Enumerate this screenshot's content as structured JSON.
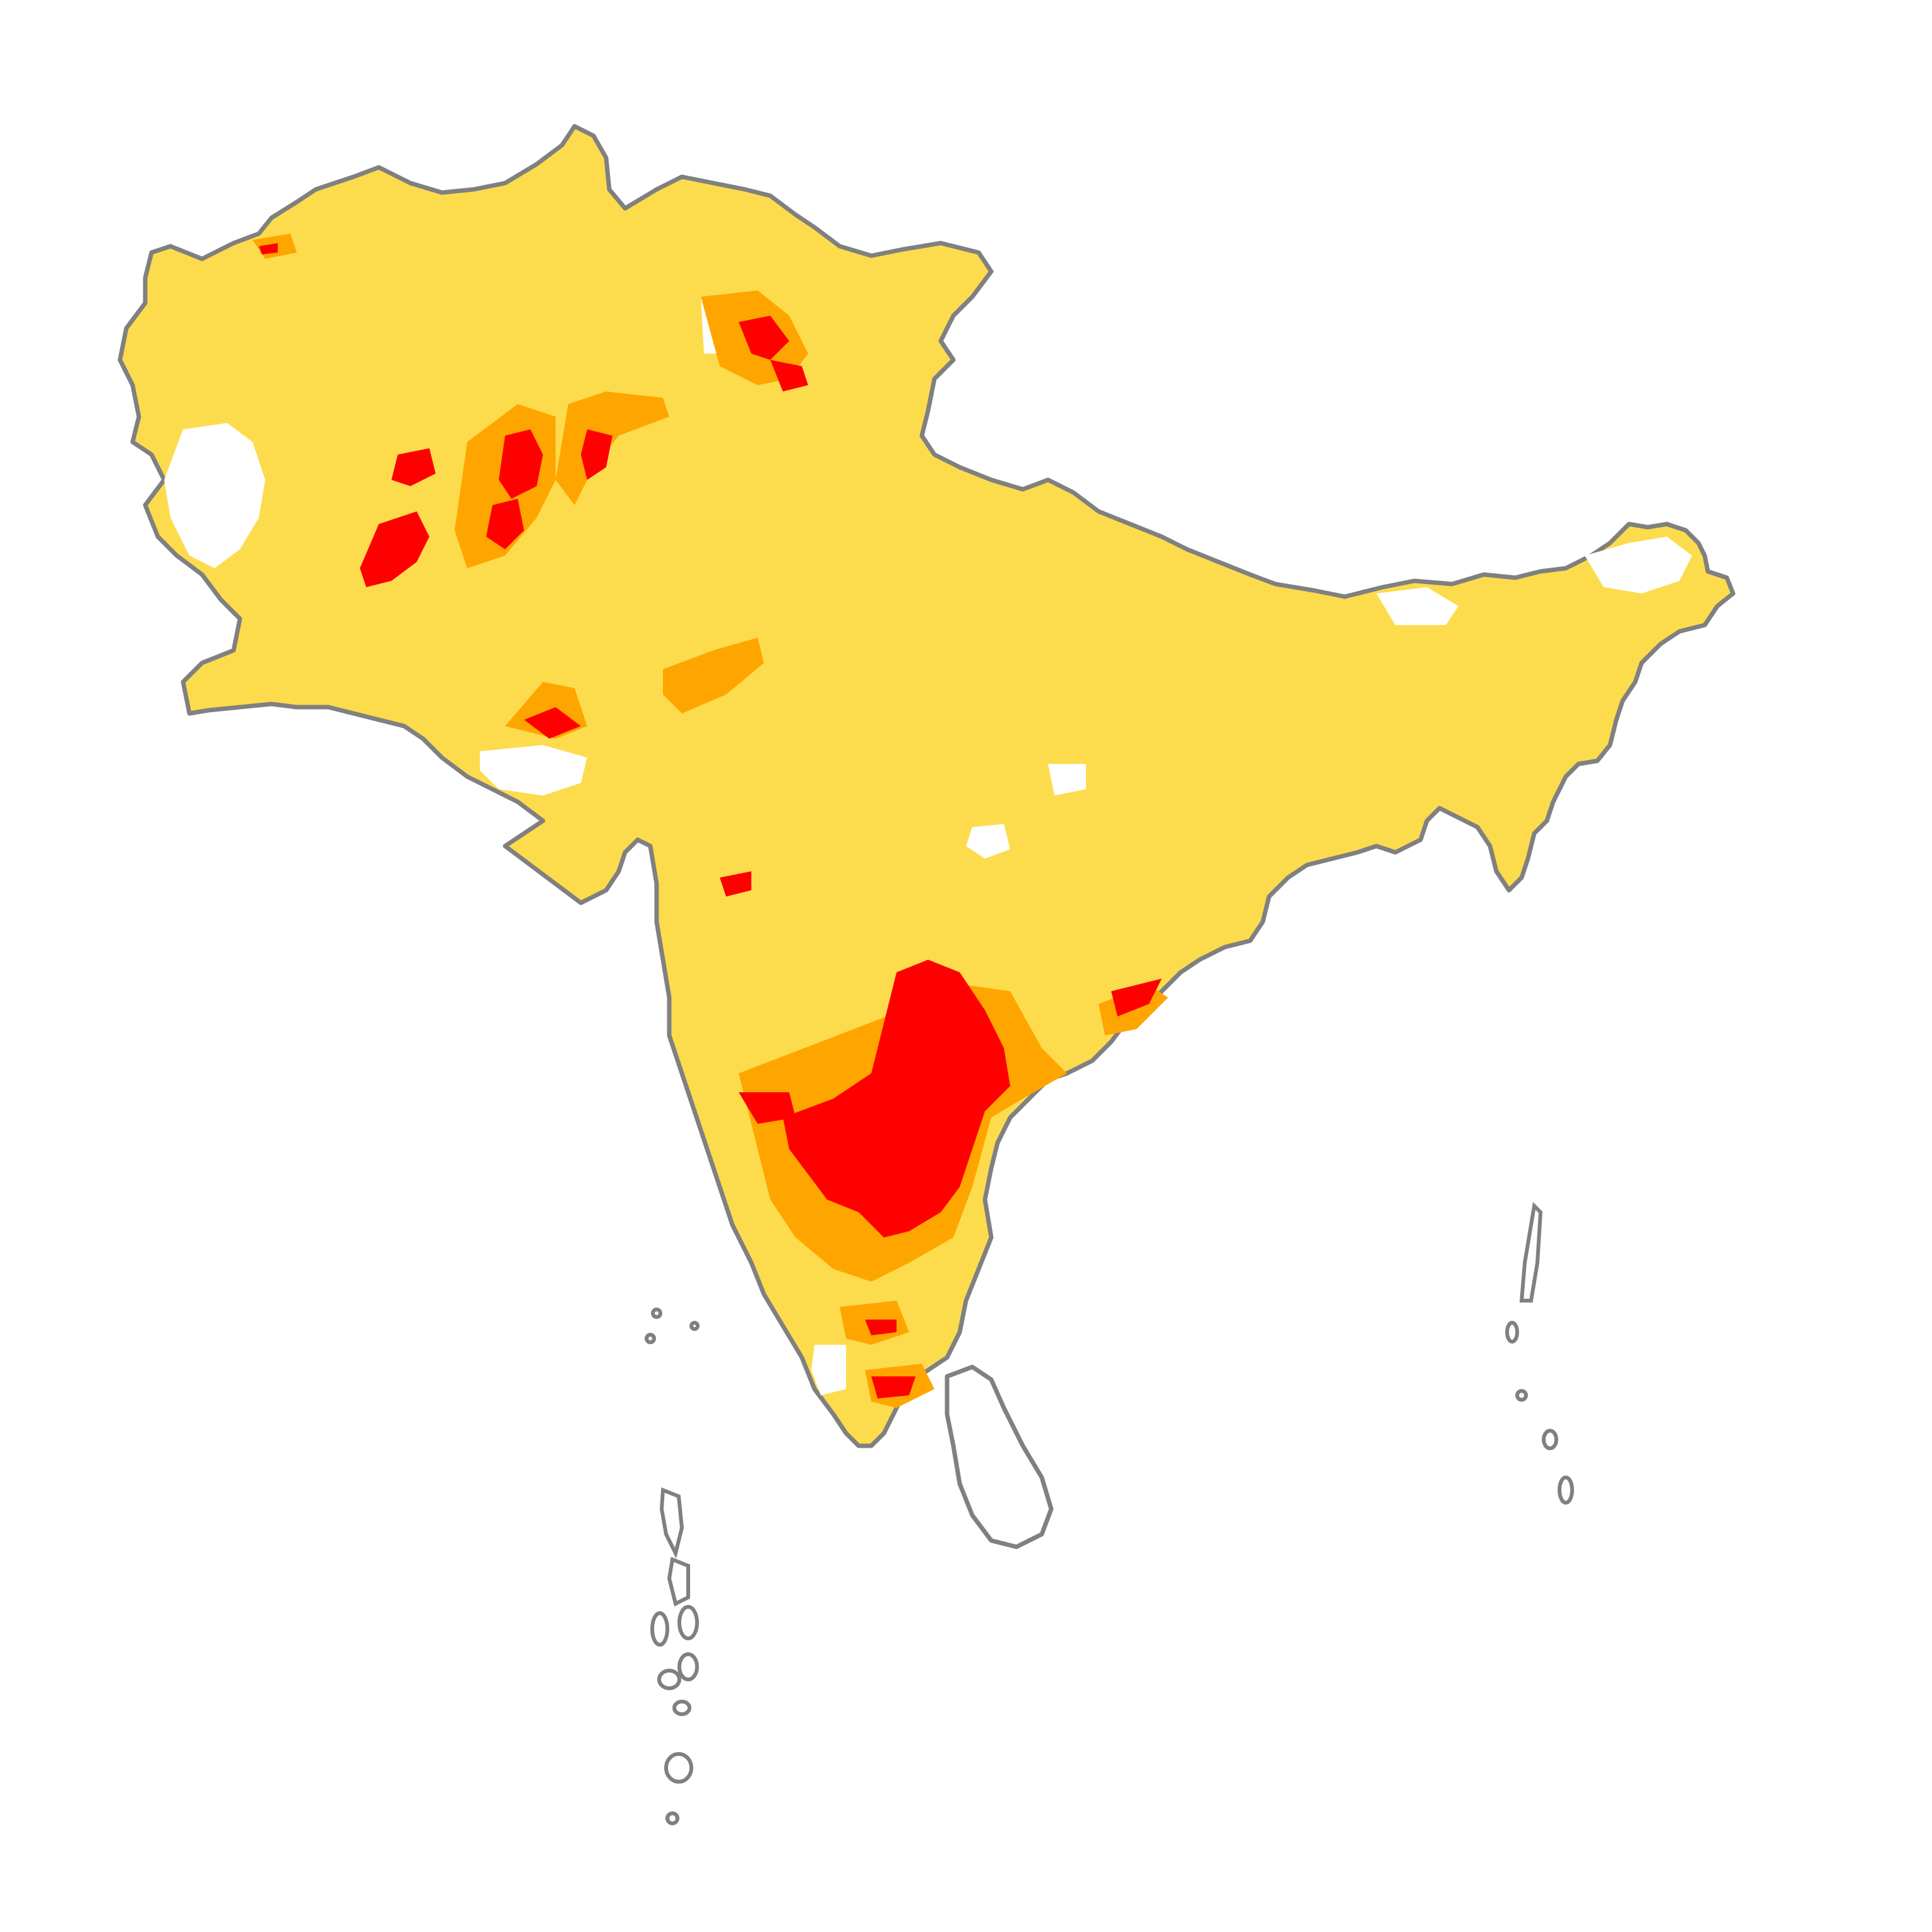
{
  "map": {
    "region": "South Asia",
    "legend_visible": false,
    "title_visible": false,
    "colors": {
      "background": "#ffffff",
      "low_class": "#fcdc4d",
      "medium_class": "#ffa500",
      "high_class": "#ff0000",
      "no_data": "#ffffff",
      "boundary": "#808080"
    },
    "classes": [
      {
        "id": "low",
        "color": "#fcdc4d"
      },
      {
        "id": "medium",
        "color": "#ffa500"
      },
      {
        "id": "high",
        "color": "#ff0000"
      }
    ],
    "features": [
      {
        "name": "mainland-south-asia",
        "fill": "low_class"
      },
      {
        "name": "sri-lanka",
        "fill": "no_data"
      },
      {
        "name": "maldives-islands",
        "fill": "no_data"
      },
      {
        "name": "andaman-nicobar-islands",
        "fill": "no_data"
      },
      {
        "name": "lakshadweep-islands",
        "fill": "no_data"
      }
    ]
  }
}
